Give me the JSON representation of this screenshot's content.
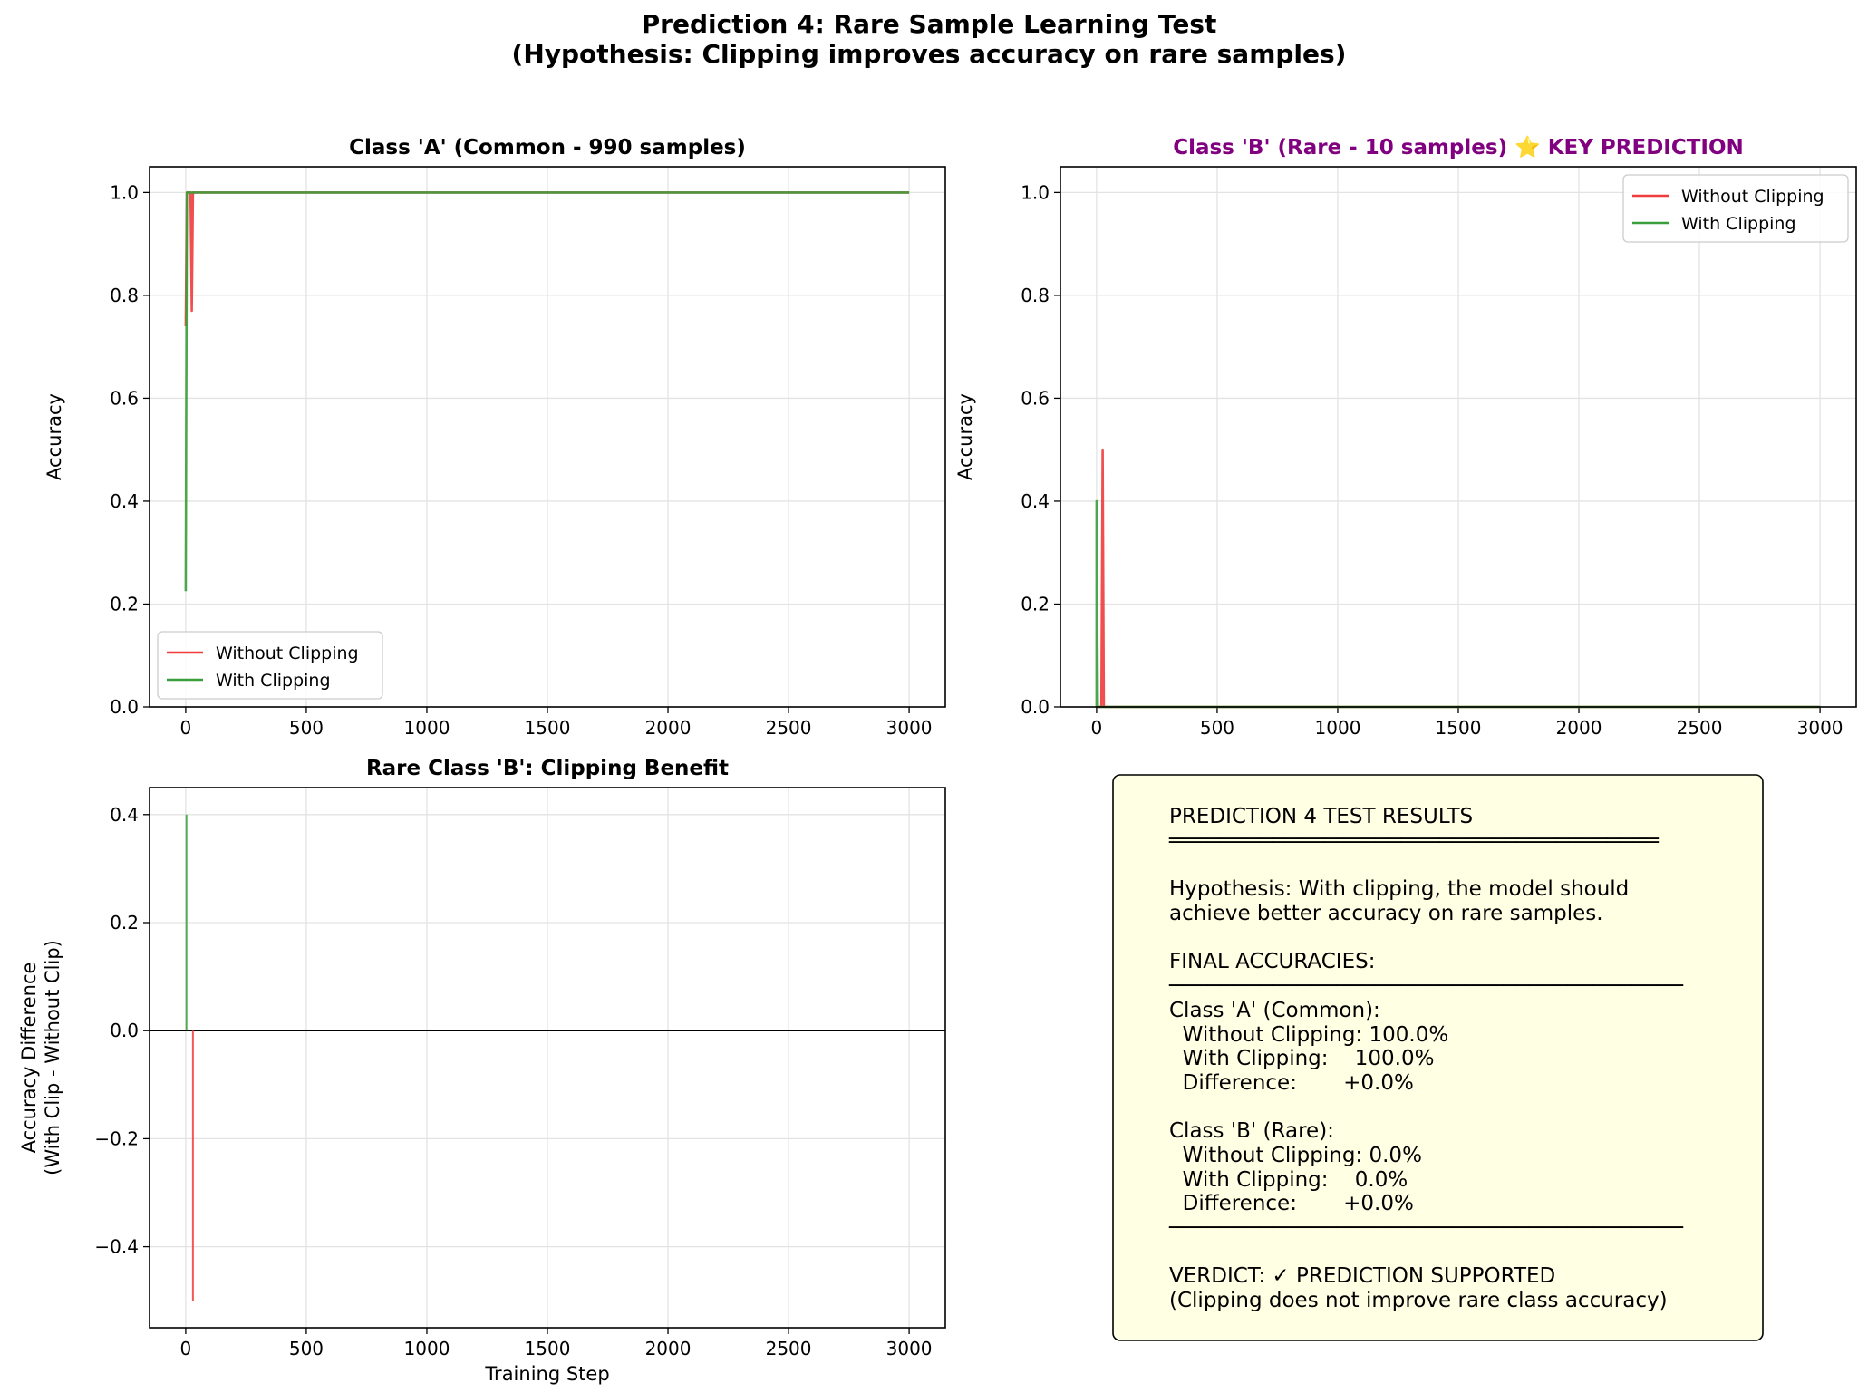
{
  "figure": {
    "title_line1": "Prediction 4: Rare Sample Learning Test",
    "title_line2": "(Hypothesis: Clipping improves accuracy on rare samples)"
  },
  "colors": {
    "without_clipping": "#f03c3c",
    "with_clipping": "#3a9e3a",
    "key_title": "#800080",
    "results_box_bg": "#ffffe4"
  },
  "chart_data": [
    {
      "type": "line",
      "title": "Class 'A' (Common - 990 samples)",
      "xlabel": "",
      "ylabel": "Accuracy",
      "xlim": [
        -150,
        3150
      ],
      "ylim": [
        0,
        1.05
      ],
      "xticks": [
        0,
        500,
        1000,
        1500,
        2000,
        2500,
        3000
      ],
      "yticks": [
        0.0,
        0.2,
        0.4,
        0.6,
        0.8,
        1.0
      ],
      "xtick_labels": [
        "0",
        "500",
        "1000",
        "1500",
        "2000",
        "2500",
        "3000"
      ],
      "ytick_labels": [
        "0.0",
        "0.2",
        "0.4",
        "0.6",
        "0.8",
        "1.0"
      ],
      "grid": true,
      "legend_position": "lower-left",
      "series": [
        {
          "name": "Without Clipping",
          "color": "#f03c3c",
          "x": [
            0,
            5,
            10,
            15,
            20,
            25,
            30,
            35,
            40,
            3000
          ],
          "y": [
            0.74,
            1.0,
            1.0,
            1.0,
            1.0,
            0.77,
            1.0,
            1.0,
            1.0,
            1.0
          ]
        },
        {
          "name": "With Clipping",
          "color": "#3a9e3a",
          "x": [
            0,
            5,
            10,
            15,
            20,
            3000
          ],
          "y": [
            0.225,
            1.0,
            1.0,
            1.0,
            1.0,
            1.0
          ]
        }
      ]
    },
    {
      "type": "line",
      "title": "Class 'B' (Rare - 10 samples) ⭐ KEY PREDICTION",
      "title_color": "#800080",
      "xlabel": "",
      "ylabel": "Accuracy",
      "xlim": [
        -150,
        3150
      ],
      "ylim": [
        0,
        1.05
      ],
      "xticks": [
        0,
        500,
        1000,
        1500,
        2000,
        2500,
        3000
      ],
      "yticks": [
        0.0,
        0.2,
        0.4,
        0.6,
        0.8,
        1.0
      ],
      "xtick_labels": [
        "0",
        "500",
        "1000",
        "1500",
        "2000",
        "2500",
        "3000"
      ],
      "ytick_labels": [
        "0.0",
        "0.2",
        "0.4",
        "0.6",
        "0.8",
        "1.0"
      ],
      "grid": true,
      "legend_position": "upper-right",
      "series": [
        {
          "name": "Without Clipping",
          "color": "#f03c3c",
          "x": [
            0,
            20,
            25,
            30,
            3000
          ],
          "y": [
            0.0,
            0.0,
            0.5,
            0.0,
            0.0
          ]
        },
        {
          "name": "With Clipping",
          "color": "#3a9e3a",
          "x": [
            0,
            0,
            5,
            3000
          ],
          "y": [
            0.0,
            0.4,
            0.0,
            0.0
          ]
        }
      ]
    },
    {
      "type": "bar",
      "title": "Rare Class 'B': Clipping Benefit",
      "xlabel": "Training Step",
      "ylabel_line1": "Accuracy Difference",
      "ylabel_line2": "(With Clip - Without Clip)",
      "xlim": [
        -150,
        3150
      ],
      "ylim": [
        -0.55,
        0.45
      ],
      "xticks": [
        0,
        500,
        1000,
        1500,
        2000,
        2500,
        3000
      ],
      "yticks": [
        -0.4,
        -0.2,
        0.0,
        0.2,
        0.4
      ],
      "xtick_labels": [
        "0",
        "500",
        "1000",
        "1500",
        "2000",
        "2500",
        "3000"
      ],
      "ytick_labels": [
        "−0.4",
        "−0.2",
        "0.0",
        "0.2",
        "0.4"
      ],
      "grid": true,
      "zero_line": true,
      "bars": [
        {
          "x": 3,
          "value": 0.4,
          "color": "#3a9e3a"
        },
        {
          "x": 30,
          "value": -0.5,
          "color": "#f03c3c"
        }
      ]
    }
  ],
  "results": {
    "title": "PREDICTION 4 TEST RESULTS",
    "divider_double": "══════════════════════════════════════",
    "hypothesis_line1": "Hypothesis: With clipping, the model should",
    "hypothesis_line2": "achieve better accuracy on rare samples.",
    "final_heading": "FINAL ACCURACIES:",
    "divider_single": "────────────────────────────────────────",
    "class_a_heading": "Class 'A' (Common):",
    "class_a_without": "  Without Clipping: 100.0%",
    "class_a_with": "  With Clipping:    100.0%",
    "class_a_diff": "  Difference:       +0.0%",
    "class_b_heading": "Class 'B' (Rare):",
    "class_b_without": "  Without Clipping: 0.0%",
    "class_b_with": "  With Clipping:    0.0%",
    "class_b_diff": "  Difference:       +0.0%",
    "divider_single_2": "────────────────────────────────────────",
    "verdict": "VERDICT: ✓ PREDICTION SUPPORTED",
    "verdict_note": "(Clipping does not improve rare class accuracy)"
  }
}
